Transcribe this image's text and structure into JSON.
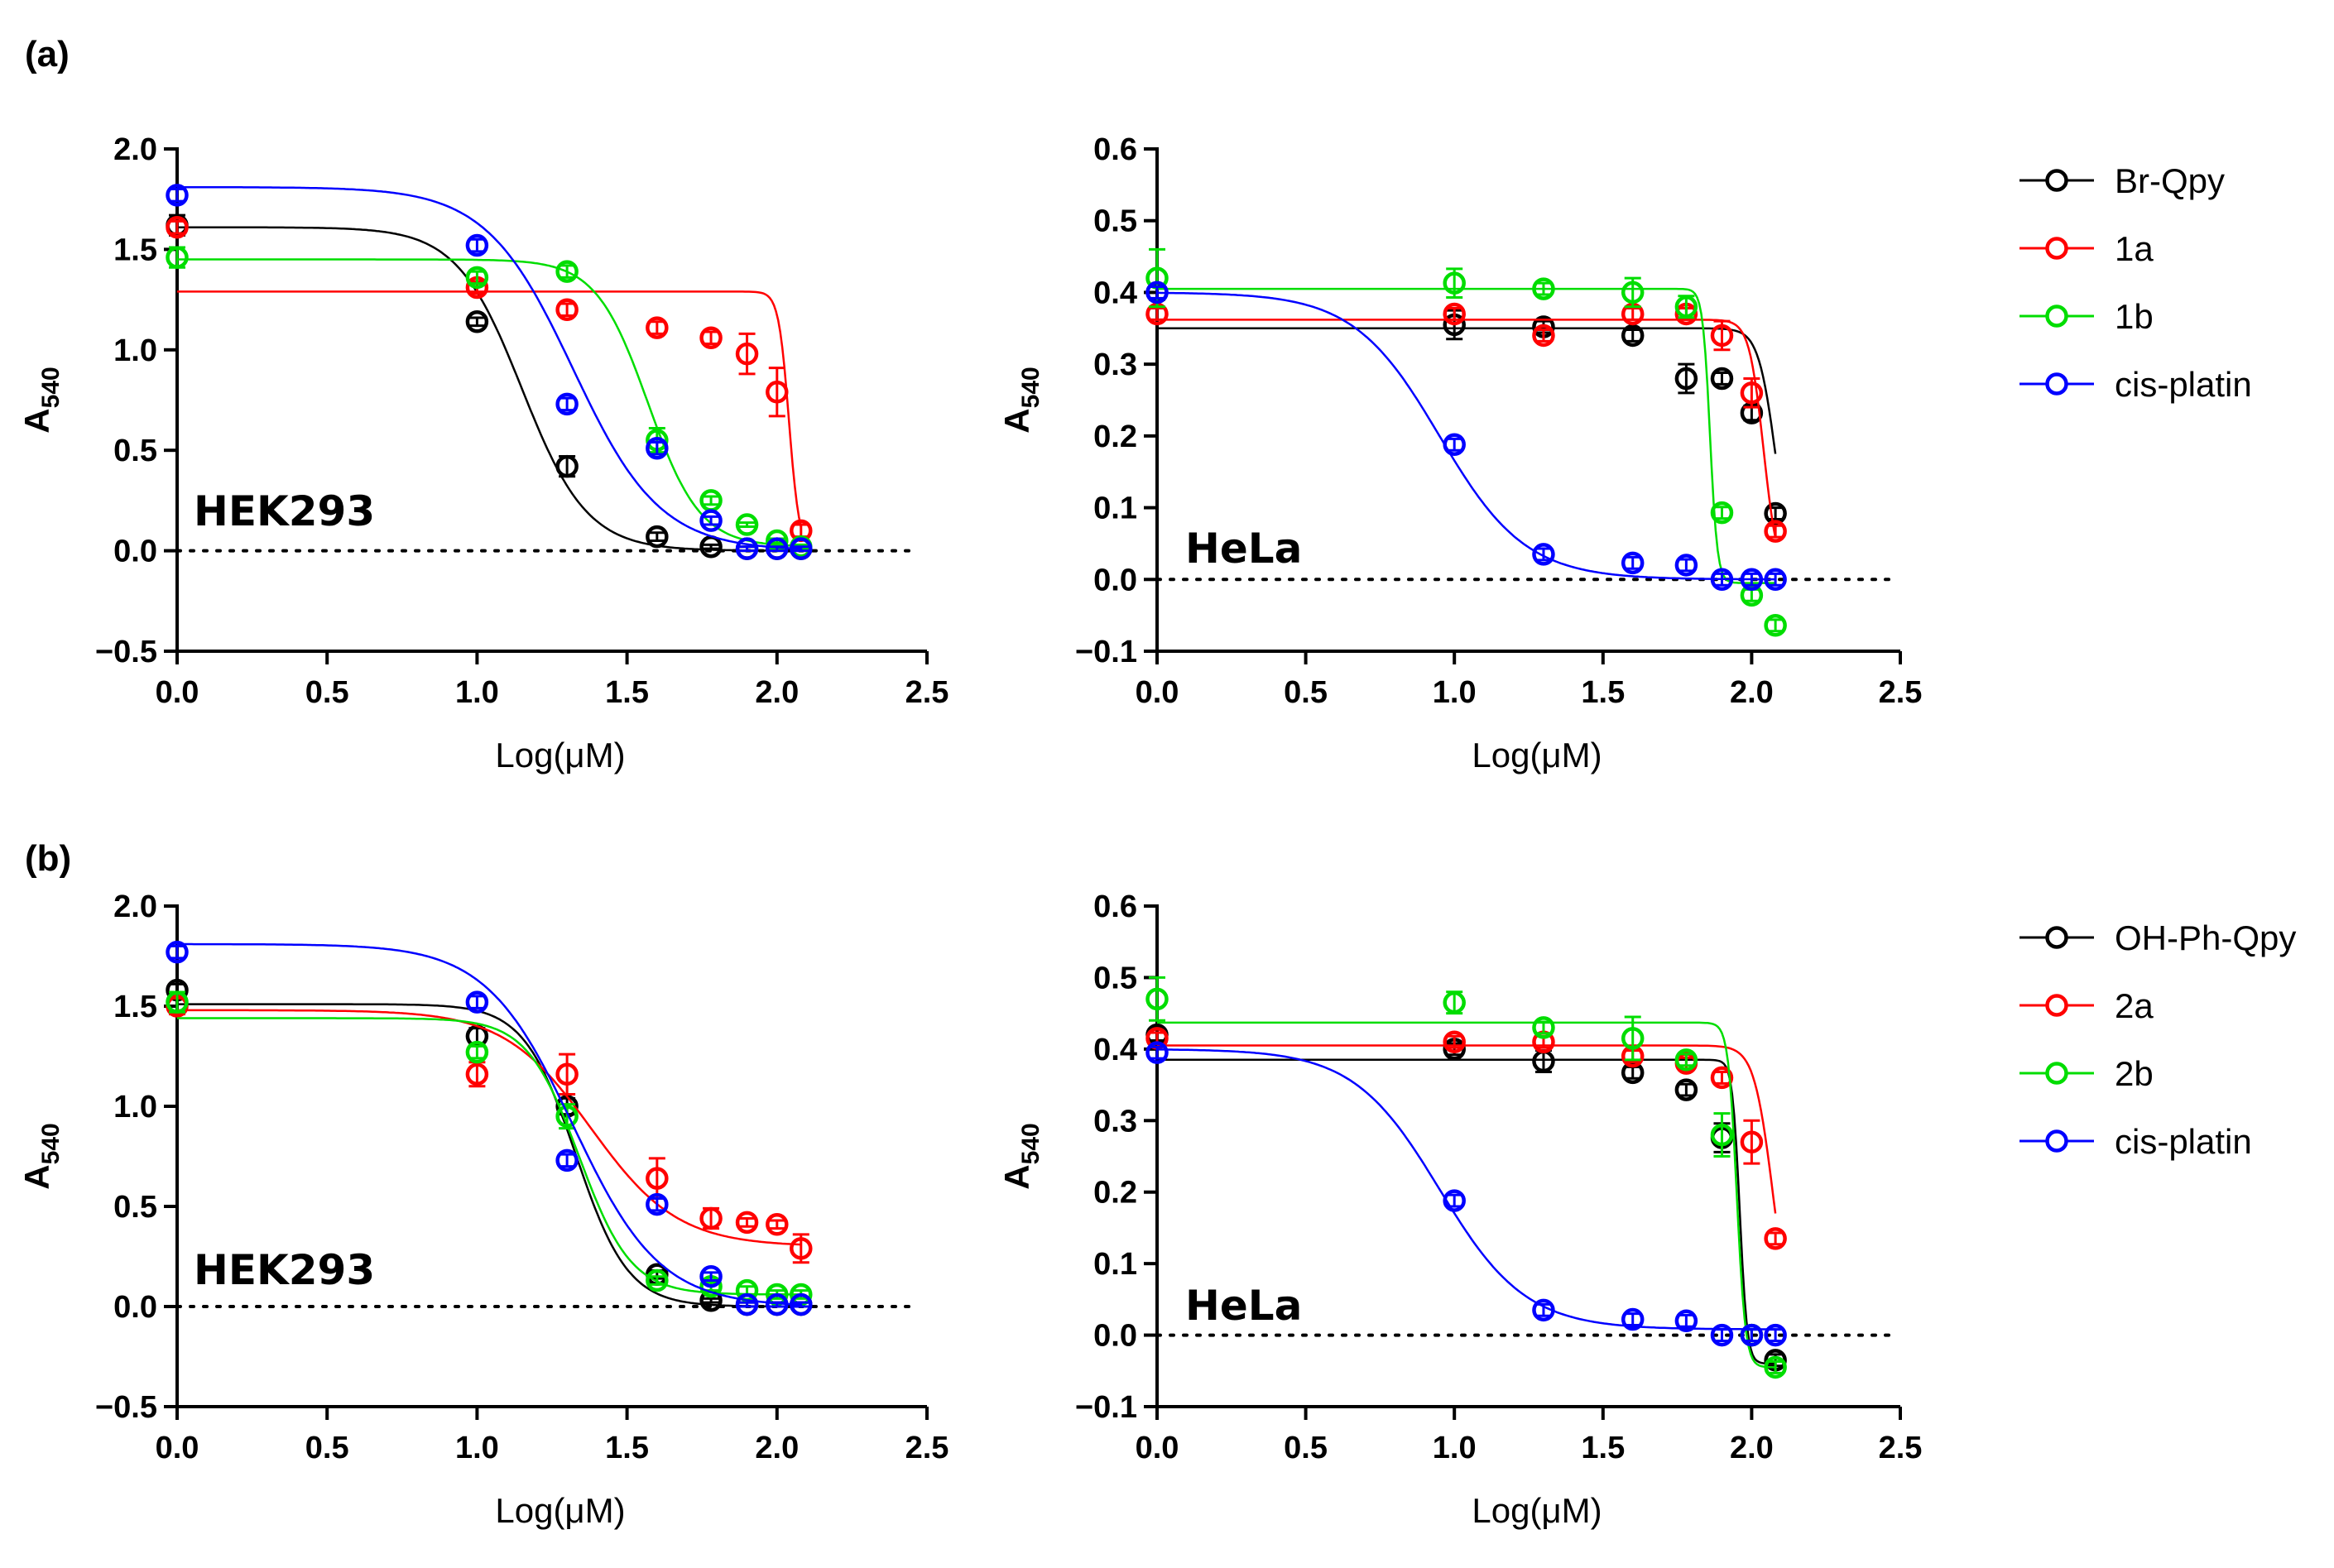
{
  "figure": {
    "panel_labels": [
      "(a)",
      "(b)"
    ]
  },
  "legends": [
    {
      "entries": [
        {
          "name": "Br-Qpy",
          "color": "#000000"
        },
        {
          "name": "1a",
          "color": "#ff0000"
        },
        {
          "name": "1b",
          "color": "#00dd00"
        },
        {
          "name": "cis-platin",
          "color": "#0000ff"
        }
      ]
    },
    {
      "entries": [
        {
          "name": "OH-Ph-Qpy",
          "color": "#000000"
        },
        {
          "name": "2a",
          "color": "#ff0000"
        },
        {
          "name": "2b",
          "color": "#00dd00"
        },
        {
          "name": "cis-platin",
          "color": "#0000ff"
        }
      ]
    }
  ],
  "chart_data": [
    {
      "type": "scatter",
      "panel": "(a)",
      "cell_line": "HEK293",
      "xlabel": "Log(μM)",
      "ylabel_main": "A",
      "ylabel_sub": "540",
      "xlim": [
        0,
        2.5
      ],
      "ylim": [
        -0.5,
        2.0
      ],
      "xticks": [
        0,
        0.5,
        1.0,
        1.5,
        2.0,
        2.5
      ],
      "xtick_labels": [
        "0.0",
        "0.5",
        "1.0",
        "1.5",
        "2.0",
        "2.5"
      ],
      "yticks": [
        -0.5,
        0,
        0.5,
        1.0,
        1.5,
        2.0
      ],
      "ytick_labels": [
        "−0.5",
        "0.0",
        "0.5",
        "1.0",
        "1.5",
        "2.0"
      ],
      "baseline": 0,
      "series": [
        {
          "name": "Br-Qpy",
          "color": "#000000",
          "x": [
            0,
            1.0,
            1.3,
            1.6,
            1.78,
            1.9,
            2.0,
            2.08
          ],
          "y": [
            1.62,
            1.14,
            0.42,
            0.07,
            0.02,
            0.01,
            0.01,
            0.01
          ],
          "err": [
            0.05,
            0.02,
            0.05,
            0.02,
            0.01,
            0.01,
            0.01,
            0.01
          ],
          "fit": {
            "top": 1.61,
            "bottom": 0.0,
            "logec50": 1.15,
            "hill": 4
          }
        },
        {
          "name": "1a",
          "color": "#ff0000",
          "x": [
            0,
            1.0,
            1.3,
            1.6,
            1.78,
            1.9,
            2.0,
            2.08
          ],
          "y": [
            1.61,
            1.31,
            1.2,
            1.11,
            1.06,
            0.98,
            0.79,
            0.1
          ],
          "err": [
            0.03,
            0.03,
            0.03,
            0.03,
            0.03,
            0.1,
            0.12,
            0.03
          ],
          "fit": {
            "top": 1.29,
            "bottom": 0.0,
            "logec50": 2.04,
            "hill": 25
          }
        },
        {
          "name": "1b",
          "color": "#00dd00",
          "x": [
            0,
            1.0,
            1.3,
            1.6,
            1.78,
            1.9,
            2.0,
            2.08
          ],
          "y": [
            1.46,
            1.36,
            1.39,
            0.55,
            0.25,
            0.13,
            0.05,
            0.02
          ],
          "err": [
            0.05,
            0.03,
            0.03,
            0.06,
            0.02,
            0.01,
            0.01,
            0.01
          ],
          "fit": {
            "top": 1.45,
            "bottom": 0.02,
            "logec50": 1.57,
            "hill": 5
          }
        },
        {
          "name": "cis-platin",
          "color": "#0000ff",
          "x": [
            0,
            1.0,
            1.3,
            1.6,
            1.78,
            1.9,
            2.0,
            2.08
          ],
          "y": [
            1.77,
            1.52,
            0.73,
            0.51,
            0.15,
            0.01,
            0.01,
            0.01
          ],
          "err": [
            0.03,
            0.03,
            0.03,
            0.03,
            0.02,
            0.01,
            0.01,
            0.01
          ],
          "fit": {
            "top": 1.81,
            "bottom": 0.0,
            "logec50": 1.32,
            "hill": 3
          }
        }
      ]
    },
    {
      "type": "scatter",
      "panel": "(a)",
      "cell_line": "HeLa",
      "xlabel": "Log(μM)",
      "ylabel_main": "A",
      "ylabel_sub": "540",
      "xlim": [
        0,
        2.5
      ],
      "ylim": [
        -0.1,
        0.6
      ],
      "xticks": [
        0,
        0.5,
        1.0,
        1.5,
        2.0,
        2.5
      ],
      "xtick_labels": [
        "0.0",
        "0.5",
        "1.0",
        "1.5",
        "2.0",
        "2.5"
      ],
      "yticks": [
        -0.1,
        0,
        0.1,
        0.2,
        0.3,
        0.4,
        0.5,
        0.6
      ],
      "ytick_labels": [
        "−0.1",
        "0.0",
        "0.1",
        "0.2",
        "0.3",
        "0.4",
        "0.5",
        "0.6"
      ],
      "baseline": 0,
      "series": [
        {
          "name": "Br-Qpy",
          "color": "#000000",
          "x": [
            0,
            1.0,
            1.3,
            1.6,
            1.78,
            1.9,
            2.0,
            2.08
          ],
          "y": [
            0.4,
            0.355,
            0.352,
            0.34,
            0.28,
            0.28,
            0.232,
            0.092
          ],
          "err": [
            0.01,
            0.02,
            0.008,
            0.008,
            0.02,
            0.008,
            0.01,
            0.008
          ],
          "fit": {
            "top": 0.35,
            "bottom": 0.0,
            "logec50": 2.08,
            "hill": 15
          }
        },
        {
          "name": "1a",
          "color": "#ff0000",
          "x": [
            0,
            1.0,
            1.3,
            1.6,
            1.78,
            1.9,
            2.0,
            2.08
          ],
          "y": [
            0.37,
            0.37,
            0.34,
            0.37,
            0.37,
            0.34,
            0.26,
            0.067
          ],
          "err": [
            0.008,
            0.008,
            0.008,
            0.008,
            0.008,
            0.02,
            0.02,
            0.008
          ],
          "fit": {
            "top": 0.362,
            "bottom": 0.0,
            "logec50": 2.04,
            "hill": 18
          }
        },
        {
          "name": "1b",
          "color": "#00dd00",
          "x": [
            0,
            1.0,
            1.3,
            1.6,
            1.78,
            1.9,
            2.0,
            2.08
          ],
          "y": [
            0.42,
            0.413,
            0.405,
            0.4,
            0.38,
            0.093,
            -0.022,
            -0.064
          ],
          "err": [
            0.04,
            0.02,
            0.008,
            0.02,
            0.015,
            0.008,
            0.008,
            0.008
          ],
          "fit": {
            "top": 0.405,
            "bottom": -0.005,
            "logec50": 1.86,
            "hill": 35
          }
        },
        {
          "name": "cis-platin",
          "color": "#0000ff",
          "x": [
            0,
            1.0,
            1.3,
            1.6,
            1.78,
            1.9,
            2.0,
            2.08
          ],
          "y": [
            0.4,
            0.188,
            0.035,
            0.023,
            0.02,
            0.0,
            0.0,
            0.0
          ],
          "err": [
            0.008,
            0.008,
            0.008,
            0.008,
            0.008,
            0.008,
            0.008,
            0.008
          ],
          "fit": {
            "top": 0.4,
            "bottom": 0.0,
            "logec50": 0.95,
            "hill": 3
          }
        }
      ]
    },
    {
      "type": "scatter",
      "panel": "(b)",
      "cell_line": "HEK293",
      "xlabel": "Log(μM)",
      "ylabel_main": "A",
      "ylabel_sub": "540",
      "xlim": [
        0,
        2.5
      ],
      "ylim": [
        -0.5,
        2.0
      ],
      "xticks": [
        0,
        0.5,
        1.0,
        1.5,
        2.0,
        2.5
      ],
      "xtick_labels": [
        "0.0",
        "0.5",
        "1.0",
        "1.5",
        "2.0",
        "2.5"
      ],
      "yticks": [
        -0.5,
        0,
        0.5,
        1.0,
        1.5,
        2.0
      ],
      "ytick_labels": [
        "−0.5",
        "0.0",
        "0.5",
        "1.0",
        "1.5",
        "2.0"
      ],
      "baseline": 0,
      "series": [
        {
          "name": "OH-Ph-Qpy",
          "color": "#000000",
          "x": [
            0,
            1.0,
            1.3,
            1.6,
            1.78,
            1.9,
            2.0,
            2.08
          ],
          "y": [
            1.58,
            1.35,
            1.0,
            0.16,
            0.03,
            0.01,
            0.01,
            0.01
          ],
          "err": [
            0.03,
            0.04,
            0.04,
            0.02,
            0.01,
            0.01,
            0.01,
            0.01
          ],
          "fit": {
            "top": 1.51,
            "bottom": 0.0,
            "logec50": 1.33,
            "hill": 5
          }
        },
        {
          "name": "2a",
          "color": "#ff0000",
          "x": [
            0,
            1.0,
            1.3,
            1.6,
            1.78,
            1.9,
            2.0,
            2.08
          ],
          "y": [
            1.5,
            1.16,
            1.16,
            0.64,
            0.44,
            0.42,
            0.41,
            0.29
          ],
          "err": [
            0.04,
            0.06,
            0.1,
            0.1,
            0.05,
            0.02,
            0.02,
            0.07
          ],
          "fit": {
            "top": 1.48,
            "bottom": 0.3,
            "logec50": 1.38,
            "hill": 3
          }
        },
        {
          "name": "2b",
          "color": "#00dd00",
          "x": [
            0,
            1.0,
            1.3,
            1.6,
            1.78,
            1.9,
            2.0,
            2.08
          ],
          "y": [
            1.52,
            1.27,
            0.95,
            0.13,
            0.1,
            0.08,
            0.06,
            0.06
          ],
          "err": [
            0.05,
            0.03,
            0.06,
            0.02,
            0.02,
            0.02,
            0.02,
            0.02
          ],
          "fit": {
            "top": 1.44,
            "bottom": 0.06,
            "logec50": 1.34,
            "hill": 5
          }
        },
        {
          "name": "cis-platin",
          "color": "#0000ff",
          "x": [
            0,
            1.0,
            1.3,
            1.6,
            1.78,
            1.9,
            2.0,
            2.08
          ],
          "y": [
            1.77,
            1.52,
            0.73,
            0.51,
            0.15,
            0.01,
            0.01,
            0.01
          ],
          "err": [
            0.03,
            0.03,
            0.03,
            0.03,
            0.02,
            0.01,
            0.01,
            0.01
          ],
          "fit": {
            "top": 1.81,
            "bottom": 0.0,
            "logec50": 1.32,
            "hill": 3
          }
        }
      ]
    },
    {
      "type": "scatter",
      "panel": "(b)",
      "cell_line": "HeLa",
      "xlabel": "Log(μM)",
      "ylabel_main": "A",
      "ylabel_sub": "540",
      "xlim": [
        0,
        2.5
      ],
      "ylim": [
        -0.1,
        0.6
      ],
      "xticks": [
        0,
        0.5,
        1.0,
        1.5,
        2.0,
        2.5
      ],
      "xtick_labels": [
        "0.0",
        "0.5",
        "1.0",
        "1.5",
        "2.0",
        "2.5"
      ],
      "yticks": [
        -0.1,
        0,
        0.1,
        0.2,
        0.3,
        0.4,
        0.5,
        0.6
      ],
      "ytick_labels": [
        "−0.1",
        "0.0",
        "0.1",
        "0.2",
        "0.3",
        "0.4",
        "0.5",
        "0.6"
      ],
      "baseline": 0,
      "series": [
        {
          "name": "OH-Ph-Qpy",
          "color": "#000000",
          "x": [
            0,
            1.0,
            1.3,
            1.6,
            1.78,
            1.9,
            2.0,
            2.08
          ],
          "y": [
            0.42,
            0.4,
            0.383,
            0.367,
            0.343,
            0.276,
            0.0,
            -0.035
          ],
          "err": [
            0.008,
            0.008,
            0.015,
            0.008,
            0.008,
            0.02,
            0.008,
            0.008
          ],
          "fit": {
            "top": 0.385,
            "bottom": -0.04,
            "logec50": 1.96,
            "hill": 35
          }
        },
        {
          "name": "2a",
          "color": "#ff0000",
          "x": [
            0,
            1.0,
            1.3,
            1.6,
            1.78,
            1.9,
            2.0,
            2.08
          ],
          "y": [
            0.415,
            0.41,
            0.41,
            0.39,
            0.38,
            0.36,
            0.27,
            0.135
          ],
          "err": [
            0.008,
            0.008,
            0.008,
            0.008,
            0.008,
            0.008,
            0.03,
            0.008
          ],
          "fit": {
            "top": 0.405,
            "bottom": 0.0,
            "logec50": 2.07,
            "hill": 14
          }
        },
        {
          "name": "2b",
          "color": "#00dd00",
          "x": [
            0,
            1.0,
            1.3,
            1.6,
            1.78,
            1.9,
            2.0,
            2.08
          ],
          "y": [
            0.47,
            0.465,
            0.43,
            0.415,
            0.385,
            0.28,
            0.0,
            -0.045
          ],
          "err": [
            0.03,
            0.015,
            0.008,
            0.03,
            0.008,
            0.03,
            0.008,
            0.008
          ],
          "fit": {
            "top": 0.437,
            "bottom": -0.045,
            "logec50": 1.95,
            "hill": 30
          }
        },
        {
          "name": "cis-platin",
          "color": "#0000ff",
          "x": [
            0,
            1.0,
            1.3,
            1.6,
            1.78,
            1.9,
            2.0,
            2.08
          ],
          "y": [
            0.395,
            0.188,
            0.035,
            0.022,
            0.02,
            0.0,
            0.0,
            0.0
          ],
          "err": [
            0.008,
            0.008,
            0.008,
            0.008,
            0.008,
            0.008,
            0.008,
            0.008
          ],
          "fit": {
            "top": 0.4,
            "bottom": 0.008,
            "logec50": 0.95,
            "hill": 3
          }
        }
      ]
    }
  ]
}
